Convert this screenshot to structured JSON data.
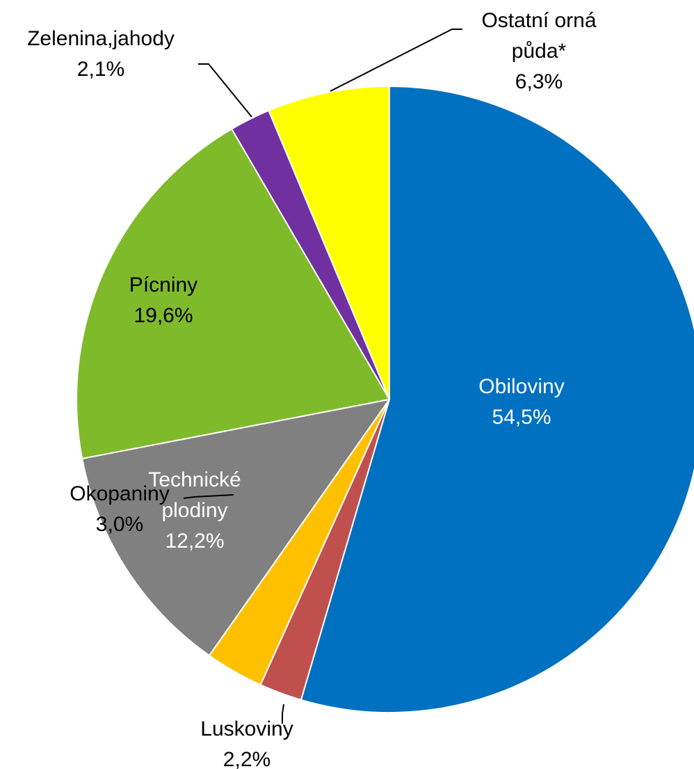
{
  "chart_data": {
    "type": "pie",
    "categories": [
      "Obiloviny",
      "Luskoviny",
      "Okopaniny",
      "Technické plodiny",
      "Pícniny",
      "Zelenina,jahody",
      "Ostatní orná půda*"
    ],
    "values": [
      54.5,
      2.2,
      3.0,
      12.2,
      19.6,
      2.1,
      6.3
    ],
    "value_labels": [
      "54,5%",
      "2,2%",
      "3,0%",
      "12,2%",
      "19,6%",
      "2,1%",
      "6,3%"
    ],
    "colors": [
      "#0070c0",
      "#c0504d",
      "#ffc000",
      "#808080",
      "#7fba2b",
      "#7030a0",
      "#ffff00"
    ]
  }
}
